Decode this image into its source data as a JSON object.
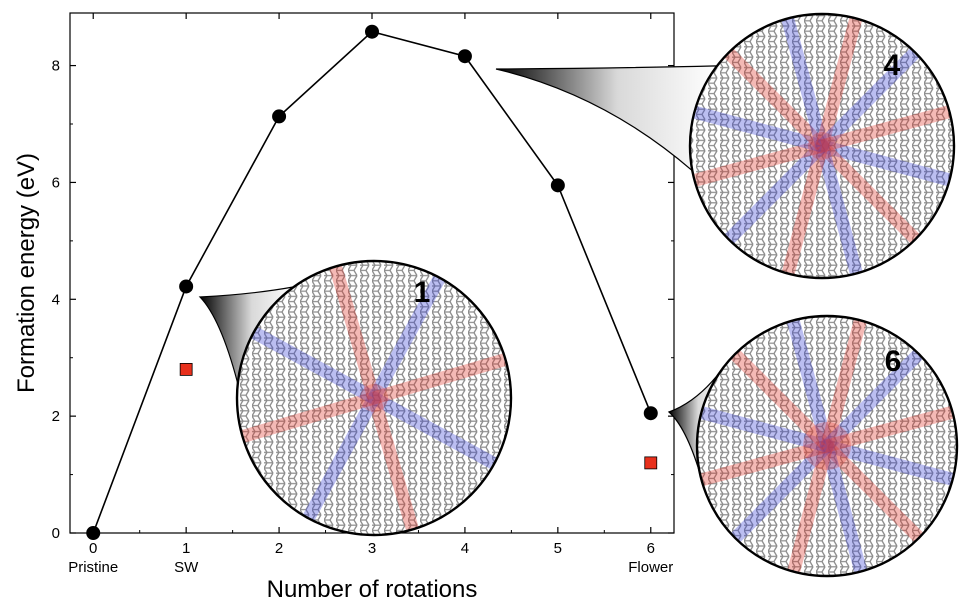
{
  "chart_data": {
    "type": "line",
    "xlabel": "Number of rotations",
    "ylabel": "Formation energy (eV)",
    "xlim": [
      -0.25,
      6.25
    ],
    "ylim": [
      0,
      8.9
    ],
    "grid": false,
    "x_ticks": [
      {
        "value": 0,
        "label": "0",
        "sublabel": "Pristine"
      },
      {
        "value": 1,
        "label": "1",
        "sublabel": "SW"
      },
      {
        "value": 2,
        "label": "2",
        "sublabel": ""
      },
      {
        "value": 3,
        "label": "3",
        "sublabel": ""
      },
      {
        "value": 4,
        "label": "4",
        "sublabel": ""
      },
      {
        "value": 5,
        "label": "5",
        "sublabel": ""
      },
      {
        "value": 6,
        "label": "6",
        "sublabel": "Flower"
      }
    ],
    "y_ticks": [
      {
        "value": 0,
        "label": "0"
      },
      {
        "value": 2,
        "label": "2"
      },
      {
        "value": 4,
        "label": "4"
      },
      {
        "value": 6,
        "label": "6"
      },
      {
        "value": 8,
        "label": "8"
      }
    ],
    "series": [
      {
        "marker": "circle",
        "color": "#000000",
        "line": true,
        "x": [
          0,
          1,
          2,
          3,
          4,
          5,
          6
        ],
        "y": [
          0.0,
          4.22,
          7.13,
          8.58,
          8.16,
          5.95,
          2.05
        ]
      },
      {
        "marker": "square",
        "color": "#e8301c",
        "line": false,
        "x": [
          1,
          6
        ],
        "y": [
          2.8,
          1.2
        ]
      }
    ],
    "insets": [
      {
        "label": "1",
        "points_to": {
          "x": 1,
          "y": 4.22
        },
        "pattern": "SW defect (one rotated bond)"
      },
      {
        "label": "4",
        "points_to": {
          "x": 4,
          "y": 8.16
        },
        "pattern": "four rotations"
      },
      {
        "label": "6",
        "points_to": {
          "x": 6,
          "y": 2.05
        },
        "pattern": "flower defect (six rotations)"
      }
    ],
    "colors": {
      "compressive": "#3b45d8",
      "tensile": "#e0362b",
      "neutral": "#8a8a8a"
    }
  }
}
